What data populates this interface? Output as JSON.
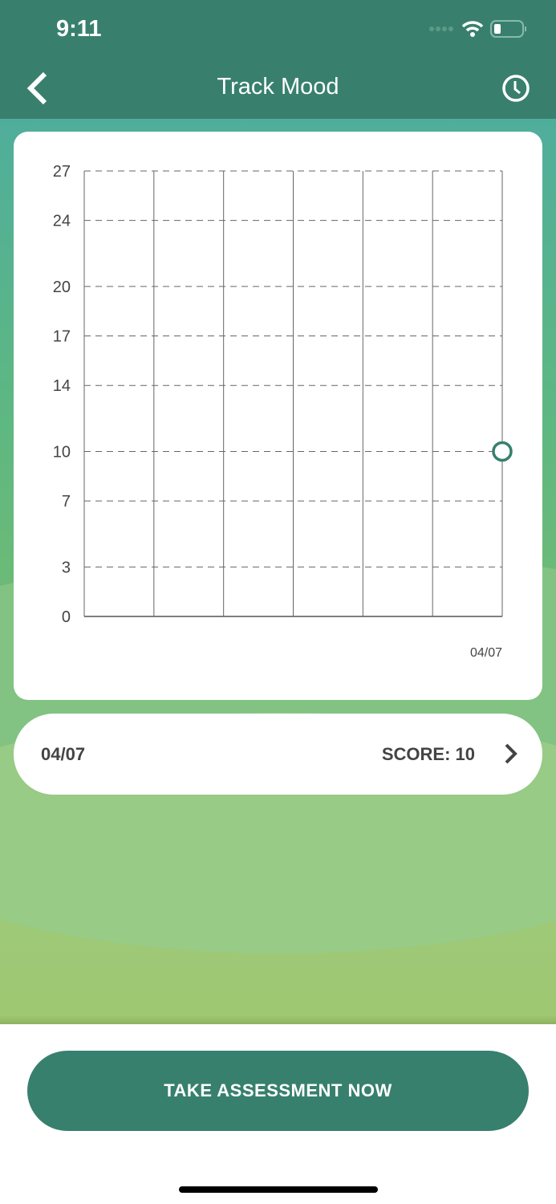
{
  "status_bar": {
    "time": "9:11"
  },
  "header": {
    "title": "Track Mood",
    "back_icon": "chevron-left-icon",
    "history_icon": "clock-icon"
  },
  "colors": {
    "header": "#38806d",
    "accent": "#37806d",
    "point": "#37806d"
  },
  "chart_data": {
    "type": "scatter",
    "title": "",
    "xlabel": "",
    "ylabel": "",
    "y_ticks": [
      0,
      3,
      7,
      10,
      14,
      17,
      20,
      24,
      27
    ],
    "ylim": [
      0,
      27
    ],
    "x_tick_labels": [
      "04/07"
    ],
    "grid": true,
    "points": [
      {
        "x": "04/07",
        "y": 10
      }
    ]
  },
  "entries": [
    {
      "date": "04/07",
      "score": "SCORE: 10"
    }
  ],
  "action": {
    "label": "TAKE ASSESSMENT NOW"
  }
}
